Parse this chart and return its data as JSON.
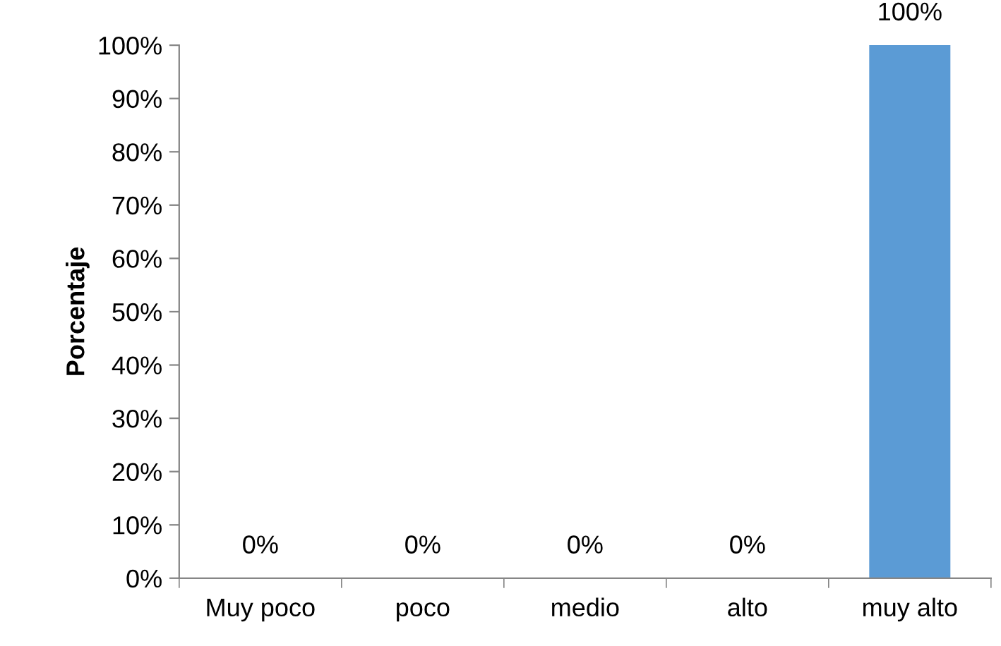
{
  "chart_data": {
    "type": "bar",
    "ylabel": "Porcentaje",
    "categories": [
      "Muy poco",
      "poco",
      "medio",
      "alto",
      "muy alto"
    ],
    "values": [
      0,
      0,
      0,
      0,
      100
    ],
    "color": "#5b9bd5",
    "value_labels": [
      "0%",
      "0%",
      "0%",
      "0%",
      "100%"
    ],
    "ylim": [
      0,
      100
    ],
    "yticks": [
      {
        "value": 0,
        "label": "0%"
      },
      {
        "value": 10,
        "label": "10%"
      },
      {
        "value": 20,
        "label": "20%"
      },
      {
        "value": 30,
        "label": "30%"
      },
      {
        "value": 40,
        "label": "40%"
      },
      {
        "value": 50,
        "label": "50%"
      },
      {
        "value": 60,
        "label": "60%"
      },
      {
        "value": 70,
        "label": "70%"
      },
      {
        "value": 80,
        "label": "80%"
      },
      {
        "value": 90,
        "label": "90%"
      },
      {
        "value": 100,
        "label": "100%"
      }
    ]
  }
}
